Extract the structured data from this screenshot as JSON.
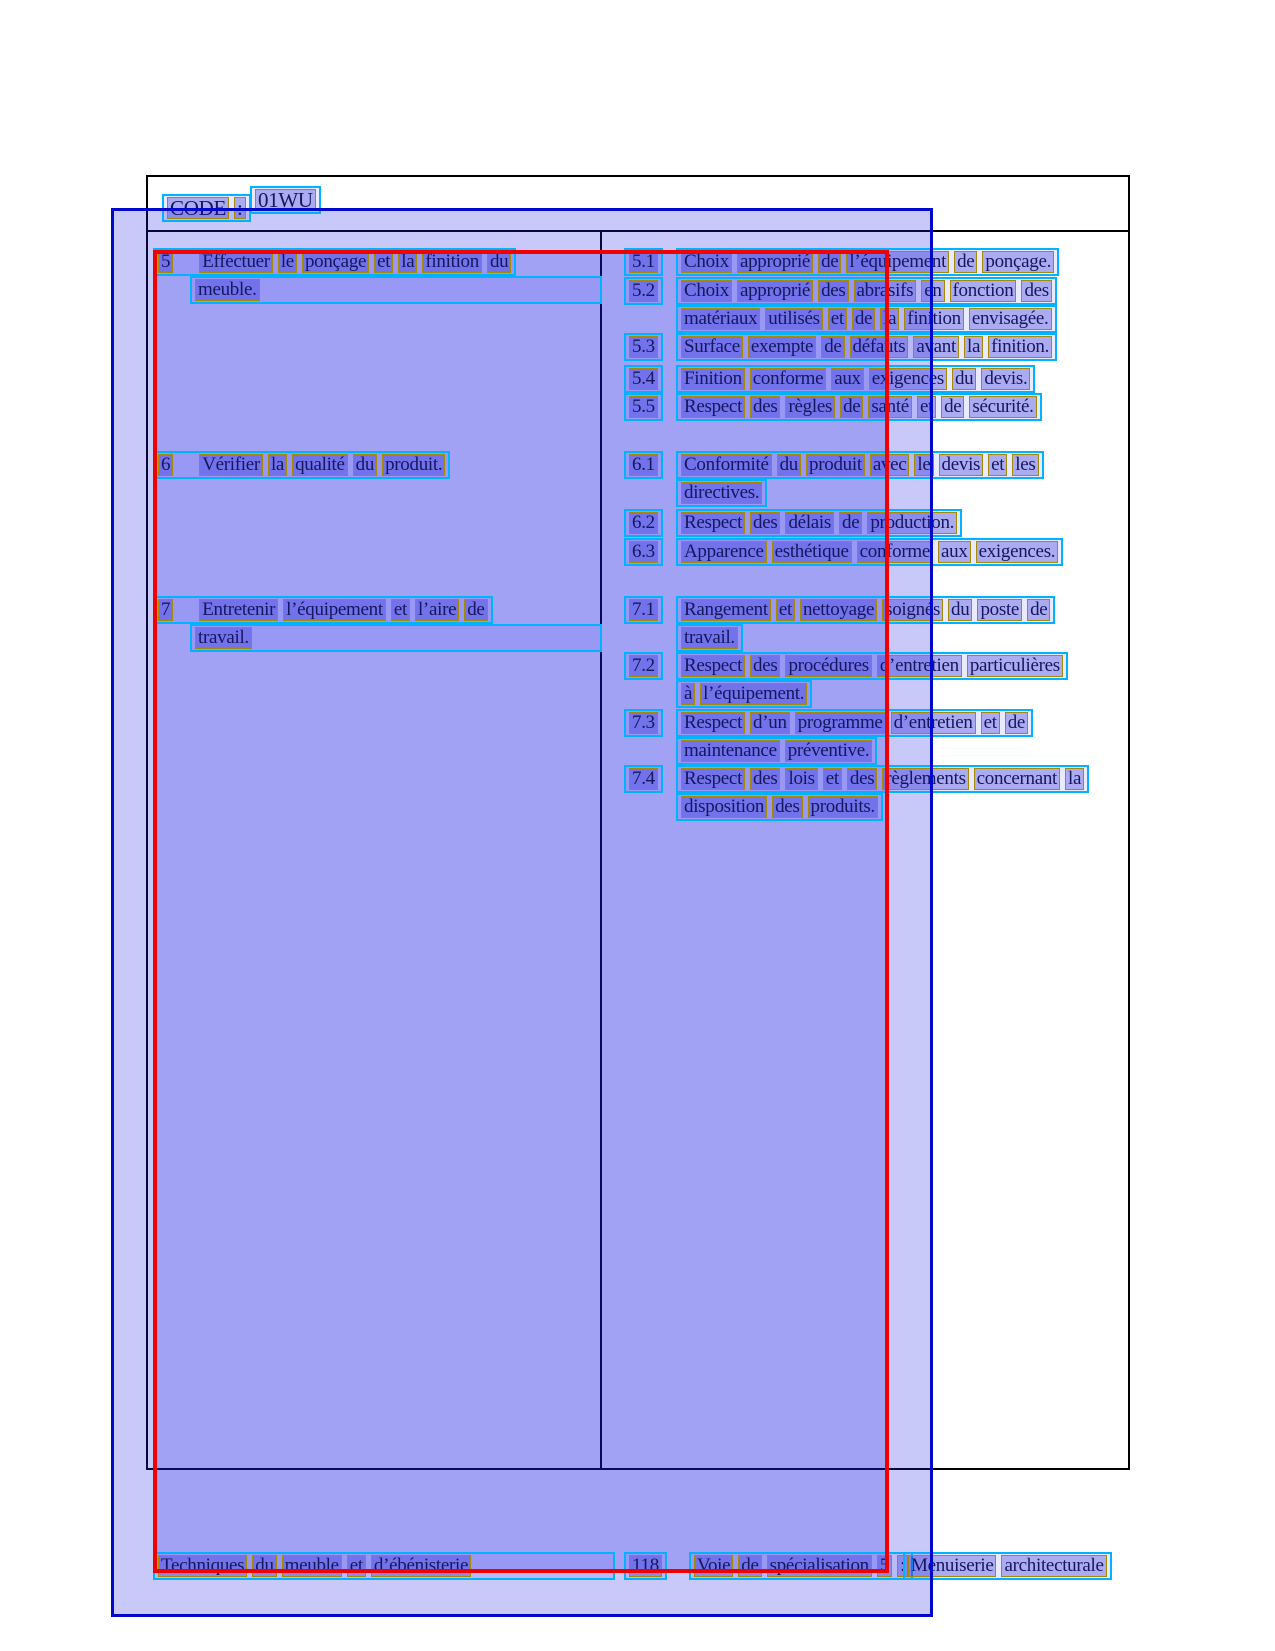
{
  "header": {
    "code_label": "CODE :",
    "code_value": "01WU"
  },
  "table": {
    "left_column": [
      {
        "num": "5",
        "lines": [
          "Effectuer le ponçage et la finition du",
          "meuble."
        ]
      },
      {
        "num": "6",
        "lines": [
          "Vérifier la qualité du produit."
        ]
      },
      {
        "num": "7",
        "lines": [
          "Entretenir l’équipement et l’aire de",
          "travail."
        ]
      }
    ],
    "right_column": [
      {
        "num": "5.1",
        "lines": [
          "Choix approprié de l’équipement de ponçage."
        ]
      },
      {
        "num": "5.2",
        "lines": [
          "Choix approprié des abrasifs en fonction des",
          "matériaux utilisés et de la finition envisagée."
        ]
      },
      {
        "num": "5.3",
        "lines": [
          "Surface exempte de défauts avant la finition."
        ]
      },
      {
        "num": "5.4",
        "lines": [
          "Finition conforme aux exigences du devis."
        ]
      },
      {
        "num": "5.5",
        "lines": [
          "Respect des règles de santé et de sécurité."
        ]
      },
      {
        "num": "6.1",
        "lines": [
          "Conformité du produit avec le devis et les",
          "directives."
        ]
      },
      {
        "num": "6.2",
        "lines": [
          "Respect des délais de production."
        ]
      },
      {
        "num": "6.3",
        "lines": [
          "Apparence esthétique conforme aux exigences."
        ]
      },
      {
        "num": "7.1",
        "lines": [
          "Rangement et nettoyage soignés du poste de",
          "travail."
        ]
      },
      {
        "num": "7.2",
        "lines": [
          "Respect des procédures d’entretien particulières",
          "à l’équipement."
        ]
      },
      {
        "num": "7.3",
        "lines": [
          "Respect d’un programme d’entretien et de",
          "maintenance préventive."
        ]
      },
      {
        "num": "7.4",
        "lines": [
          "Respect des lois et des règlements concernant la",
          "disposition des produits."
        ]
      }
    ]
  },
  "footer": {
    "program": "Techniques du meuble et d’ébénisterie",
    "page_number": "118",
    "track_label": "Voie de spécialisation 5 :",
    "track_name": "Menuiserie architecturale"
  },
  "annotation_colors": {
    "region_rect_blue": "#0008cc",
    "focus_rect_red": "#f00000",
    "line_box_cyan": "#00b2ff",
    "word_box_yellow": "#a68a06",
    "text_navy": "#16165e"
  }
}
